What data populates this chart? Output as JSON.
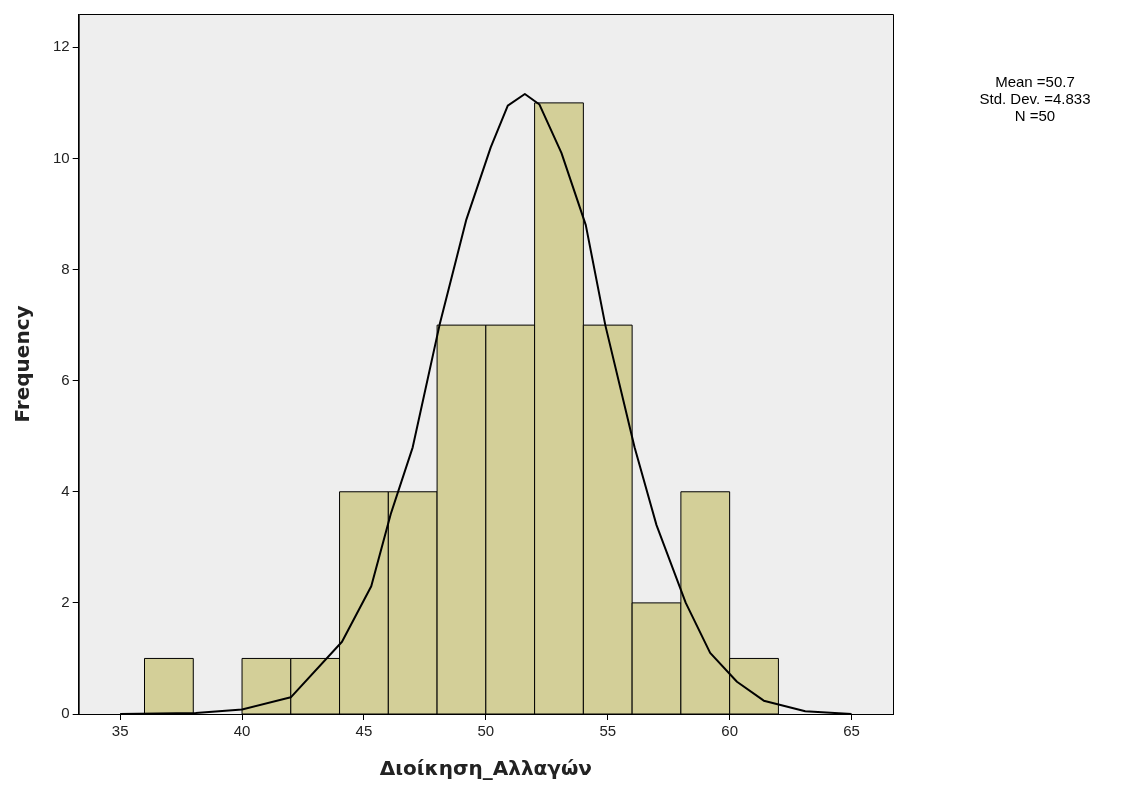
{
  "chart_data": {
    "type": "histogram",
    "xlabel": "Διοίκηση_Αλλαγών",
    "ylabel": "Frequency",
    "bins": [
      36,
      38,
      40,
      42,
      44,
      46,
      48,
      50,
      52,
      54,
      56,
      58,
      60,
      62
    ],
    "values": [
      1,
      0,
      1,
      1,
      4,
      4,
      7,
      7,
      11,
      7,
      2,
      4,
      1
    ],
    "color": "#d3cf98",
    "series": [
      {
        "type": "line",
        "color": "#000000",
        "x": [
          35,
          38.1,
          40,
          42,
          44.1,
          45.3,
          46.1,
          47,
          48.1,
          49.2,
          50.2,
          50.9,
          51.6,
          52.2,
          53.1,
          54.1,
          54.9,
          56.1,
          57,
          58.2,
          59.2,
          60.3,
          61.4,
          63.1,
          65
        ],
        "values": [
          0,
          0.02,
          0.08,
          0.3,
          1.3,
          2.3,
          3.6,
          4.8,
          7,
          8.9,
          10.2,
          10.95,
          11.16,
          10.97,
          10.1,
          8.8,
          7,
          4.8,
          3.4,
          2,
          1.1,
          0.58,
          0.24,
          0.05,
          0
        ]
      }
    ],
    "marker": "none",
    "xlim": [
      33.3,
      66.7
    ],
    "ylim": [
      0,
      12.6
    ],
    "xticks": [
      35,
      40,
      45,
      50,
      55,
      60,
      65
    ],
    "yticks": [
      0,
      2,
      4,
      6,
      8,
      10,
      12
    ],
    "annotations": [
      "Mean =50.7",
      "Std. Dev. =4.833",
      "N =50"
    ],
    "grid": false
  }
}
